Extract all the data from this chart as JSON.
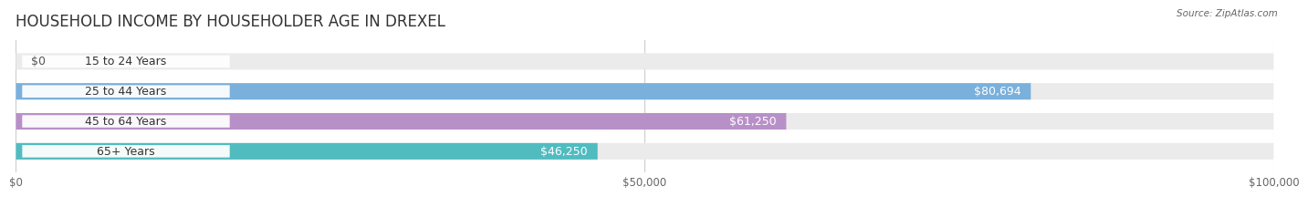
{
  "title": "HOUSEHOLD INCOME BY HOUSEHOLDER AGE IN DREXEL",
  "source": "Source: ZipAtlas.com",
  "categories": [
    "15 to 24 Years",
    "25 to 44 Years",
    "45 to 64 Years",
    "65+ Years"
  ],
  "values": [
    0,
    80694,
    61250,
    46250
  ],
  "value_labels": [
    "$0",
    "$80,694",
    "$61,250",
    "$46,250"
  ],
  "bar_colors": [
    "#f0a0a8",
    "#7ab0dc",
    "#b890c8",
    "#50bcc0"
  ],
  "background_color": "#ffffff",
  "bar_bg_color": "#ebebeb",
  "xlim": [
    0,
    100000
  ],
  "xtick_values": [
    0,
    50000,
    100000
  ],
  "xtick_labels": [
    "$0",
    "$50,000",
    "$100,000"
  ],
  "title_fontsize": 12,
  "label_fontsize": 9,
  "value_fontsize": 9,
  "bar_height": 0.55,
  "label_color_inside": "#ffffff",
  "label_color_outside": "#555555",
  "category_fontsize": 9
}
